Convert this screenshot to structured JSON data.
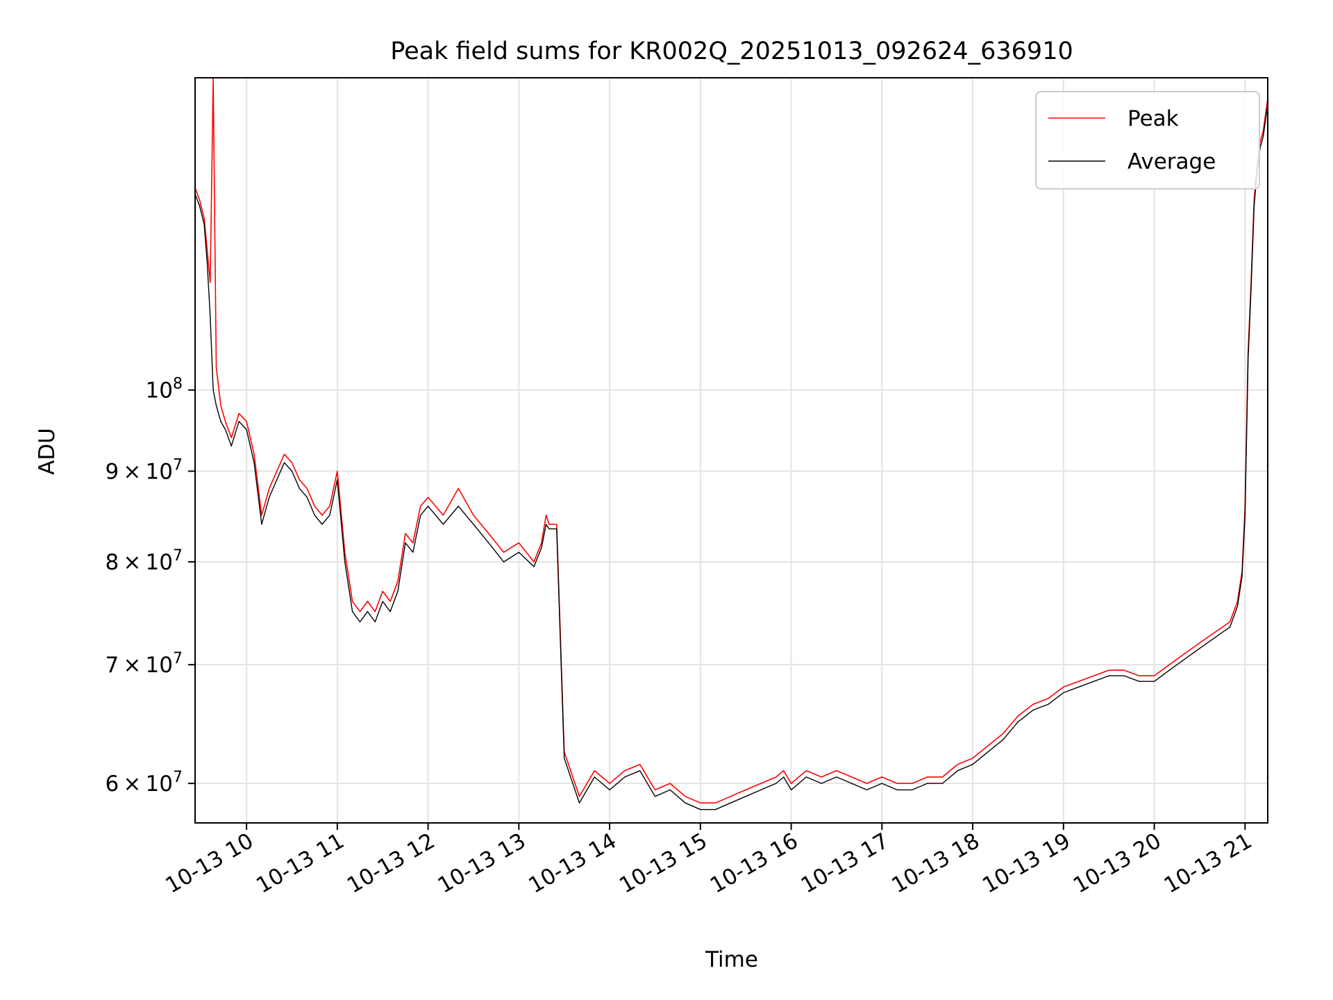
{
  "chart_data": {
    "type": "line",
    "title": "Peak field sums for KR002Q_20251013_092624_636910",
    "xlabel": "Time",
    "ylabel": "ADU",
    "y_scale": "log",
    "x_range": [
      "2025-10-13 09:26",
      "2025-10-13 21:15"
    ],
    "ylim": [
      57000000,
      150000000
    ],
    "x_ticks": [
      {
        "value": "2025-10-13 10:00",
        "label": "10-13 10"
      },
      {
        "value": "2025-10-13 11:00",
        "label": "10-13 11"
      },
      {
        "value": "2025-10-13 12:00",
        "label": "10-13 12"
      },
      {
        "value": "2025-10-13 13:00",
        "label": "10-13 13"
      },
      {
        "value": "2025-10-13 14:00",
        "label": "10-13 14"
      },
      {
        "value": "2025-10-13 15:00",
        "label": "10-13 15"
      },
      {
        "value": "2025-10-13 16:00",
        "label": "10-13 16"
      },
      {
        "value": "2025-10-13 17:00",
        "label": "10-13 17"
      },
      {
        "value": "2025-10-13 18:00",
        "label": "10-13 18"
      },
      {
        "value": "2025-10-13 19:00",
        "label": "10-13 19"
      },
      {
        "value": "2025-10-13 20:00",
        "label": "10-13 20"
      },
      {
        "value": "2025-10-13 21:00",
        "label": "10-13 21"
      }
    ],
    "y_ticks": [
      {
        "value": 60000000,
        "mant": "6",
        "base": "10",
        "exp": "7"
      },
      {
        "value": 70000000,
        "mant": "7",
        "base": "10",
        "exp": "7"
      },
      {
        "value": 80000000,
        "mant": "8",
        "base": "10",
        "exp": "7"
      },
      {
        "value": 90000000,
        "mant": "9",
        "base": "10",
        "exp": "7"
      },
      {
        "value": 100000000,
        "mant": "",
        "base": "10",
        "exp": "8"
      }
    ],
    "grid": true,
    "legend_position": "top-right",
    "series": [
      {
        "name": "Peak",
        "color": "#ff0000",
        "x": [
          "2025-10-13 09:26",
          "2025-10-13 09:29",
          "2025-10-13 09:32",
          "2025-10-13 09:34",
          "2025-10-13 09:36",
          "2025-10-13 09:38",
          "2025-10-13 09:40",
          "2025-10-13 09:43",
          "2025-10-13 09:46",
          "2025-10-13 09:50",
          "2025-10-13 09:55",
          "2025-10-13 10:00",
          "2025-10-13 10:05",
          "2025-10-13 10:10",
          "2025-10-13 10:15",
          "2025-10-13 10:20",
          "2025-10-13 10:25",
          "2025-10-13 10:30",
          "2025-10-13 10:35",
          "2025-10-13 10:40",
          "2025-10-13 10:45",
          "2025-10-13 10:50",
          "2025-10-13 10:55",
          "2025-10-13 11:00",
          "2025-10-13 11:05",
          "2025-10-13 11:10",
          "2025-10-13 11:15",
          "2025-10-13 11:20",
          "2025-10-13 11:25",
          "2025-10-13 11:30",
          "2025-10-13 11:35",
          "2025-10-13 11:40",
          "2025-10-13 11:45",
          "2025-10-13 11:50",
          "2025-10-13 11:55",
          "2025-10-13 12:00",
          "2025-10-13 12:10",
          "2025-10-13 12:20",
          "2025-10-13 12:30",
          "2025-10-13 12:40",
          "2025-10-13 12:50",
          "2025-10-13 13:00",
          "2025-10-13 13:10",
          "2025-10-13 13:15",
          "2025-10-13 13:18",
          "2025-10-13 13:20",
          "2025-10-13 13:25",
          "2025-10-13 13:30",
          "2025-10-13 13:40",
          "2025-10-13 13:50",
          "2025-10-13 14:00",
          "2025-10-13 14:10",
          "2025-10-13 14:20",
          "2025-10-13 14:30",
          "2025-10-13 14:40",
          "2025-10-13 14:50",
          "2025-10-13 15:00",
          "2025-10-13 15:10",
          "2025-10-13 15:20",
          "2025-10-13 15:30",
          "2025-10-13 15:40",
          "2025-10-13 15:50",
          "2025-10-13 15:55",
          "2025-10-13 16:00",
          "2025-10-13 16:10",
          "2025-10-13 16:20",
          "2025-10-13 16:30",
          "2025-10-13 16:40",
          "2025-10-13 16:50",
          "2025-10-13 17:00",
          "2025-10-13 17:10",
          "2025-10-13 17:20",
          "2025-10-13 17:30",
          "2025-10-13 17:40",
          "2025-10-13 17:50",
          "2025-10-13 18:00",
          "2025-10-13 18:10",
          "2025-10-13 18:20",
          "2025-10-13 18:30",
          "2025-10-13 18:40",
          "2025-10-13 18:50",
          "2025-10-13 19:00",
          "2025-10-13 19:10",
          "2025-10-13 19:20",
          "2025-10-13 19:30",
          "2025-10-13 19:40",
          "2025-10-13 19:50",
          "2025-10-13 20:00",
          "2025-10-13 20:10",
          "2025-10-13 20:20",
          "2025-10-13 20:30",
          "2025-10-13 20:40",
          "2025-10-13 20:45",
          "2025-10-13 20:50",
          "2025-10-13 20:55",
          "2025-10-13 20:58",
          "2025-10-13 21:00",
          "2025-10-13 21:02",
          "2025-10-13 21:04",
          "2025-10-13 21:06",
          "2025-10-13 21:08",
          "2025-10-13 21:10",
          "2025-10-13 21:12",
          "2025-10-13 21:15"
        ],
        "y": [
          130000000,
          128000000,
          125000000,
          120000000,
          115000000,
          150000000,
          103000000,
          98000000,
          96000000,
          94000000,
          97000000,
          96000000,
          92000000,
          85000000,
          88000000,
          90000000,
          92000000,
          91000000,
          89000000,
          88000000,
          86000000,
          85000000,
          86000000,
          90000000,
          81000000,
          76000000,
          75000000,
          76000000,
          75000000,
          77000000,
          76000000,
          78000000,
          83000000,
          82000000,
          86000000,
          87000000,
          85000000,
          88000000,
          85000000,
          83000000,
          81000000,
          82000000,
          80000000,
          82000000,
          85000000,
          84000000,
          84000000,
          62500000,
          59000000,
          61000000,
          60000000,
          61000000,
          61500000,
          59500000,
          60000000,
          59000000,
          58500000,
          58500000,
          59000000,
          59500000,
          60000000,
          60500000,
          61000000,
          60000000,
          61000000,
          60500000,
          61000000,
          60500000,
          60000000,
          60500000,
          60000000,
          60000000,
          60500000,
          60500000,
          61500000,
          62000000,
          63000000,
          64000000,
          65500000,
          66500000,
          67000000,
          68000000,
          68500000,
          69000000,
          69500000,
          69500000,
          69000000,
          69000000,
          70000000,
          71000000,
          72000000,
          73000000,
          73500000,
          74000000,
          76000000,
          79000000,
          86000000,
          105000000,
          115000000,
          128000000,
          134000000,
          138000000,
          140000000,
          146000000
        ]
      },
      {
        "name": "Average",
        "color": "#000000",
        "x": [
          "2025-10-13 09:26",
          "2025-10-13 09:29",
          "2025-10-13 09:32",
          "2025-10-13 09:34",
          "2025-10-13 09:36",
          "2025-10-13 09:38",
          "2025-10-13 09:40",
          "2025-10-13 09:43",
          "2025-10-13 09:46",
          "2025-10-13 09:50",
          "2025-10-13 09:55",
          "2025-10-13 10:00",
          "2025-10-13 10:05",
          "2025-10-13 10:10",
          "2025-10-13 10:15",
          "2025-10-13 10:20",
          "2025-10-13 10:25",
          "2025-10-13 10:30",
          "2025-10-13 10:35",
          "2025-10-13 10:40",
          "2025-10-13 10:45",
          "2025-10-13 10:50",
          "2025-10-13 10:55",
          "2025-10-13 11:00",
          "2025-10-13 11:05",
          "2025-10-13 11:10",
          "2025-10-13 11:15",
          "2025-10-13 11:20",
          "2025-10-13 11:25",
          "2025-10-13 11:30",
          "2025-10-13 11:35",
          "2025-10-13 11:40",
          "2025-10-13 11:45",
          "2025-10-13 11:50",
          "2025-10-13 11:55",
          "2025-10-13 12:00",
          "2025-10-13 12:10",
          "2025-10-13 12:20",
          "2025-10-13 12:30",
          "2025-10-13 12:40",
          "2025-10-13 12:50",
          "2025-10-13 13:00",
          "2025-10-13 13:10",
          "2025-10-13 13:15",
          "2025-10-13 13:18",
          "2025-10-13 13:20",
          "2025-10-13 13:25",
          "2025-10-13 13:30",
          "2025-10-13 13:40",
          "2025-10-13 13:50",
          "2025-10-13 14:00",
          "2025-10-13 14:10",
          "2025-10-13 14:20",
          "2025-10-13 14:30",
          "2025-10-13 14:40",
          "2025-10-13 14:50",
          "2025-10-13 15:00",
          "2025-10-13 15:10",
          "2025-10-13 15:20",
          "2025-10-13 15:30",
          "2025-10-13 15:40",
          "2025-10-13 15:50",
          "2025-10-13 15:55",
          "2025-10-13 16:00",
          "2025-10-13 16:10",
          "2025-10-13 16:20",
          "2025-10-13 16:30",
          "2025-10-13 16:40",
          "2025-10-13 16:50",
          "2025-10-13 17:00",
          "2025-10-13 17:10",
          "2025-10-13 17:20",
          "2025-10-13 17:30",
          "2025-10-13 17:40",
          "2025-10-13 17:50",
          "2025-10-13 18:00",
          "2025-10-13 18:10",
          "2025-10-13 18:20",
          "2025-10-13 18:30",
          "2025-10-13 18:40",
          "2025-10-13 18:50",
          "2025-10-13 19:00",
          "2025-10-13 19:10",
          "2025-10-13 19:20",
          "2025-10-13 19:30",
          "2025-10-13 19:40",
          "2025-10-13 19:50",
          "2025-10-13 20:00",
          "2025-10-13 20:10",
          "2025-10-13 20:20",
          "2025-10-13 20:30",
          "2025-10-13 20:40",
          "2025-10-13 20:45",
          "2025-10-13 20:50",
          "2025-10-13 20:55",
          "2025-10-13 20:58",
          "2025-10-13 21:00",
          "2025-10-13 21:02",
          "2025-10-13 21:04",
          "2025-10-13 21:06",
          "2025-10-13 21:08",
          "2025-10-13 21:10",
          "2025-10-13 21:12",
          "2025-10-13 21:15"
        ],
        "y": [
          129000000,
          127000000,
          124000000,
          118000000,
          110000000,
          100000000,
          98000000,
          96000000,
          95000000,
          93000000,
          96000000,
          95000000,
          91000000,
          84000000,
          87000000,
          89000000,
          91000000,
          90000000,
          88000000,
          87000000,
          85000000,
          84000000,
          85000000,
          89000000,
          80000000,
          75000000,
          74000000,
          75000000,
          74000000,
          76000000,
          75000000,
          77000000,
          82000000,
          81000000,
          85000000,
          86000000,
          84000000,
          86000000,
          84000000,
          82000000,
          80000000,
          81000000,
          79500000,
          81500000,
          84000000,
          83500000,
          83500000,
          62000000,
          58500000,
          60500000,
          59500000,
          60500000,
          61000000,
          59000000,
          59500000,
          58500000,
          58000000,
          58000000,
          58500000,
          59000000,
          59500000,
          60000000,
          60500000,
          59500000,
          60500000,
          60000000,
          60500000,
          60000000,
          59500000,
          60000000,
          59500000,
          59500000,
          60000000,
          60000000,
          61000000,
          61500000,
          62500000,
          63500000,
          65000000,
          66000000,
          66500000,
          67500000,
          68000000,
          68500000,
          69000000,
          69000000,
          68500000,
          68500000,
          69500000,
          70500000,
          71500000,
          72500000,
          73000000,
          73500000,
          75500000,
          78500000,
          85000000,
          104000000,
          114000000,
          127000000,
          133000000,
          137000000,
          139000000,
          145000000
        ]
      }
    ]
  }
}
